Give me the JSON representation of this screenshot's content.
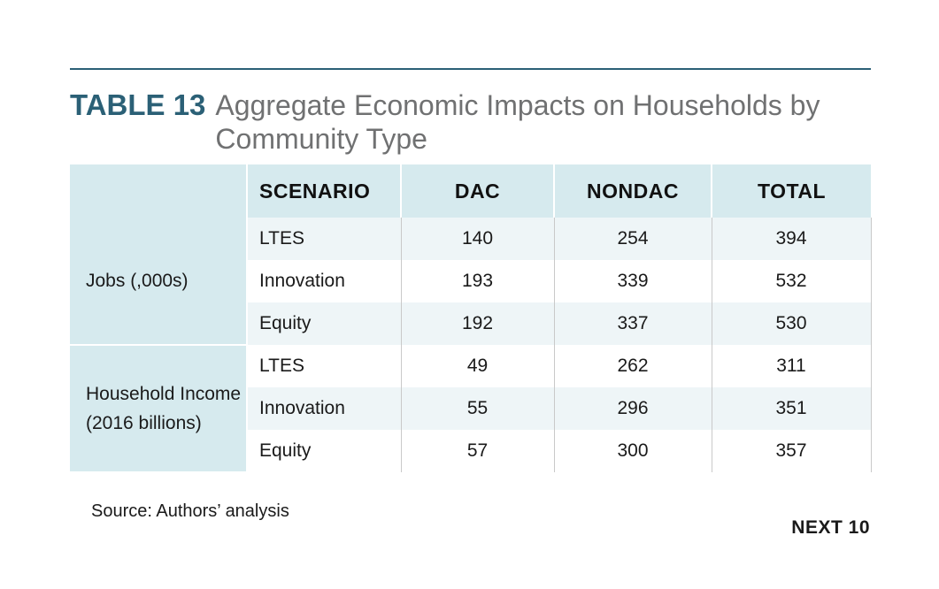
{
  "title": {
    "label": "TABLE 13",
    "text": "Aggregate Economic Impacts on Households by Community Type"
  },
  "table": {
    "headers": [
      "",
      "SCENARIO",
      "DAC",
      "NONDAC",
      "TOTAL"
    ],
    "groups": [
      {
        "category": "Jobs (,000s)",
        "rows": [
          {
            "scenario": "LTES",
            "dac": "140",
            "nondac": "254",
            "total": "394"
          },
          {
            "scenario": "Innovation",
            "dac": "193",
            "nondac": "339",
            "total": "532"
          },
          {
            "scenario": "Equity",
            "dac": "192",
            "nondac": "337",
            "total": "530"
          }
        ]
      },
      {
        "category": "Household Income (2016 billions)",
        "rows": [
          {
            "scenario": "LTES",
            "dac": "49",
            "nondac": "262",
            "total": "311"
          },
          {
            "scenario": "Innovation",
            "dac": "55",
            "nondac": "296",
            "total": "351"
          },
          {
            "scenario": "Equity",
            "dac": "57",
            "nondac": "300",
            "total": "357"
          }
        ]
      }
    ]
  },
  "source": "Source: Authors’ analysis",
  "brand": "NEXT 10",
  "colors": {
    "accent": "#2b6076",
    "header_bg": "#d6eaee",
    "row_shade": "#eef5f7",
    "title_gray": "#707172"
  }
}
